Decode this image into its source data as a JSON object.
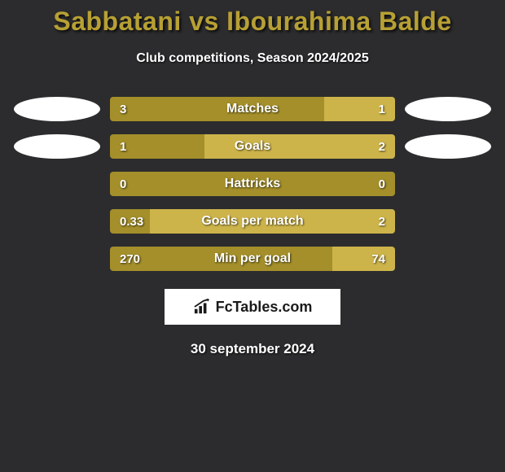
{
  "title": "Sabbatani vs Ibourahima Balde",
  "subtitle": "Club competitions, Season 2024/2025",
  "date": "30 september 2024",
  "logo_text": "FcTables.com",
  "colors": {
    "left_bar": "#a48f2a",
    "right_bar": "#cdb44a",
    "background": "#2c2c2e",
    "title_color": "#b7a034",
    "text_color": "#ffffff"
  },
  "rows": [
    {
      "label": "Matches",
      "left_val": "3",
      "right_val": "1",
      "left_pct": 75,
      "show_left_ellipse": true,
      "show_right_ellipse": true
    },
    {
      "label": "Goals",
      "left_val": "1",
      "right_val": "2",
      "left_pct": 33,
      "show_left_ellipse": true,
      "show_right_ellipse": true
    },
    {
      "label": "Hattricks",
      "left_val": "0",
      "right_val": "0",
      "left_pct": 100,
      "show_left_ellipse": false,
      "show_right_ellipse": false
    },
    {
      "label": "Goals per match",
      "left_val": "0.33",
      "right_val": "2",
      "left_pct": 14,
      "show_left_ellipse": false,
      "show_right_ellipse": false
    },
    {
      "label": "Min per goal",
      "left_val": "270",
      "right_val": "74",
      "left_pct": 78,
      "show_left_ellipse": false,
      "show_right_ellipse": false
    }
  ]
}
